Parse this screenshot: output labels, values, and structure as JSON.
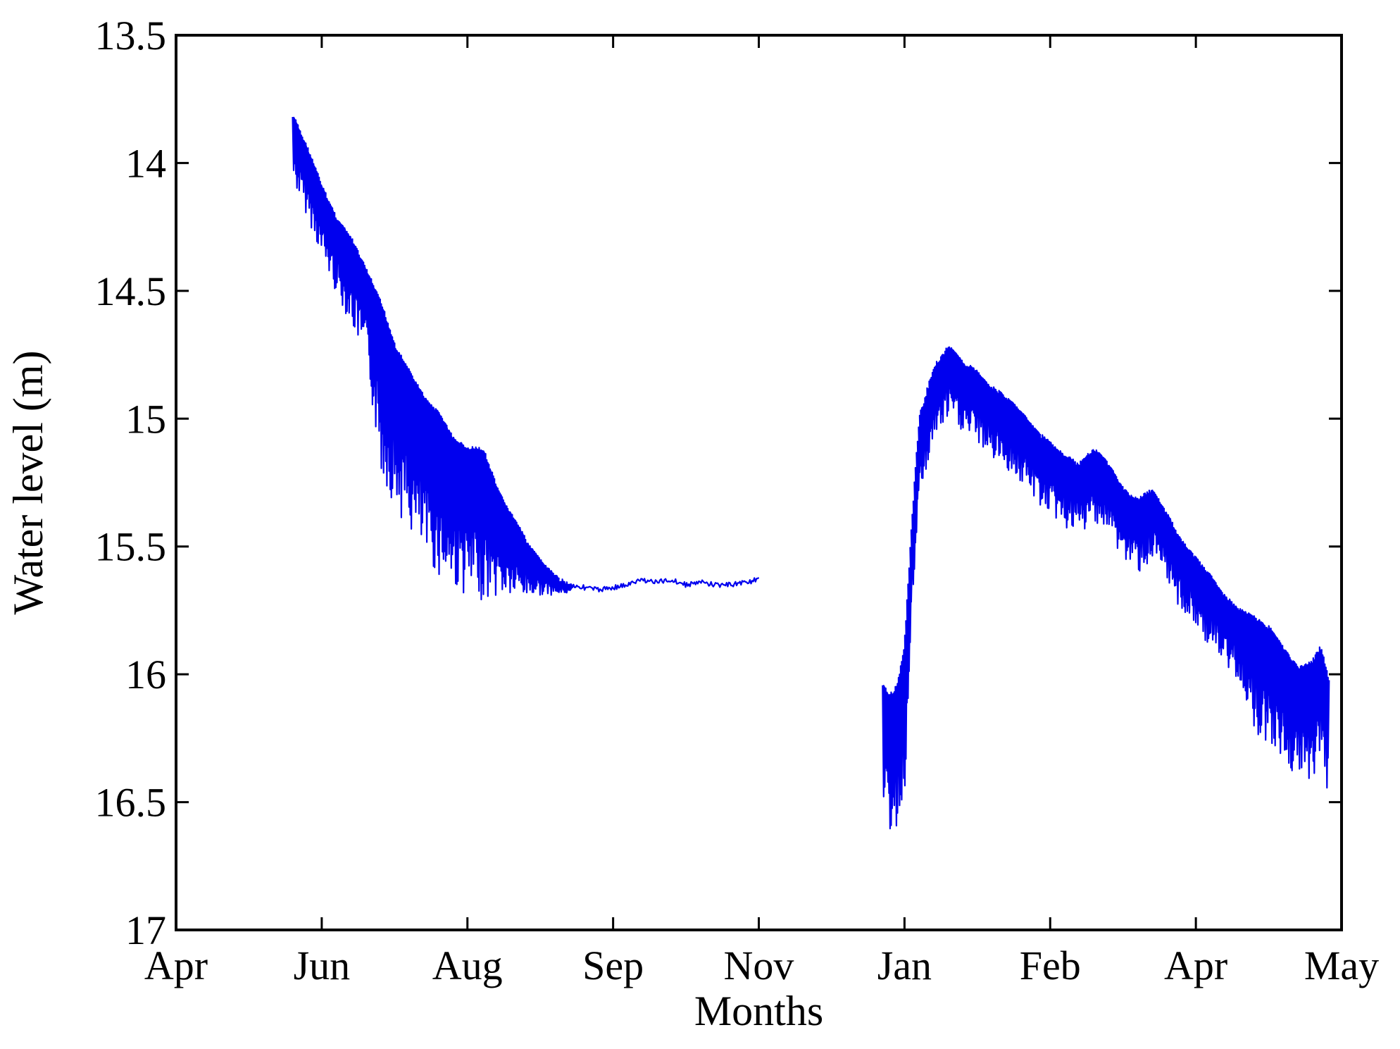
{
  "chart_data": {
    "type": "line",
    "title": "",
    "xlabel": "Months",
    "ylabel": "Water level (m)",
    "x_tick_labels": [
      "Apr",
      "Jun",
      "Aug",
      "Sep",
      "Nov",
      "Jan",
      "Feb",
      "Apr",
      "May"
    ],
    "x_tick_positions": [
      0,
      1,
      2,
      3,
      4,
      5,
      6,
      7,
      8
    ],
    "xlim": [
      0,
      8
    ],
    "y_tick_labels": [
      "13.5",
      "14",
      "14.5",
      "15",
      "15.5",
      "16",
      "16.5",
      "17"
    ],
    "ylim": [
      13.5,
      17
    ],
    "y_reversed": true,
    "grid": false,
    "line_color": "#0000ee",
    "series": [
      {
        "description_note": "",
        "segments": [
          {
            "x": [
              0.8,
              0.9,
              1.0,
              1.1,
              1.2,
              1.3,
              1.4,
              1.5,
              1.6,
              1.7,
              1.8,
              1.9,
              2.0,
              2.1,
              2.2,
              2.3,
              2.4,
              2.5,
              2.6,
              2.7,
              2.8,
              2.9,
              3.0,
              3.1,
              3.2,
              3.3,
              3.4,
              3.5,
              3.6,
              3.7,
              3.8,
              3.9,
              4.0
            ],
            "y_upper": [
              13.82,
              13.95,
              14.1,
              14.22,
              14.3,
              14.42,
              14.55,
              14.72,
              14.82,
              14.92,
              14.98,
              15.08,
              15.12,
              15.12,
              15.28,
              15.38,
              15.48,
              15.56,
              15.62,
              15.65,
              15.66,
              15.67,
              15.66,
              15.65,
              15.63,
              15.64,
              15.63,
              15.65,
              15.64,
              15.65,
              15.65,
              15.64,
              15.63
            ],
            "y_lower": [
              14.08,
              14.22,
              14.38,
              14.52,
              14.64,
              14.78,
              15.22,
              15.35,
              15.45,
              15.55,
              15.62,
              15.66,
              15.7,
              15.71,
              15.7,
              15.7,
              15.7,
              15.69,
              15.69,
              15.68,
              15.67,
              15.68,
              15.67,
              15.66,
              15.65,
              15.65,
              15.64,
              15.66,
              15.65,
              15.66,
              15.66,
              15.65,
              15.64
            ]
          },
          {
            "x": [
              4.85,
              4.9,
              4.95,
              5.0,
              5.05,
              5.1,
              5.2,
              5.3,
              5.4,
              5.5,
              5.6,
              5.7,
              5.8,
              5.9,
              6.0,
              6.1,
              6.2,
              6.3,
              6.4,
              6.5,
              6.6,
              6.7,
              6.8,
              6.9,
              7.0,
              7.1,
              7.2,
              7.3,
              7.4,
              7.5,
              7.6,
              7.7,
              7.8,
              7.85,
              7.9
            ],
            "y_upper": [
              16.05,
              16.08,
              16.05,
              15.88,
              15.4,
              15.0,
              14.8,
              14.72,
              14.78,
              14.82,
              14.88,
              14.92,
              14.98,
              15.05,
              15.1,
              15.15,
              15.18,
              15.12,
              15.18,
              15.28,
              15.32,
              15.28,
              15.38,
              15.48,
              15.55,
              15.62,
              15.7,
              15.75,
              15.78,
              15.82,
              15.9,
              15.98,
              15.95,
              15.9,
              16.02
            ]
          }
        ]
      }
    ]
  }
}
